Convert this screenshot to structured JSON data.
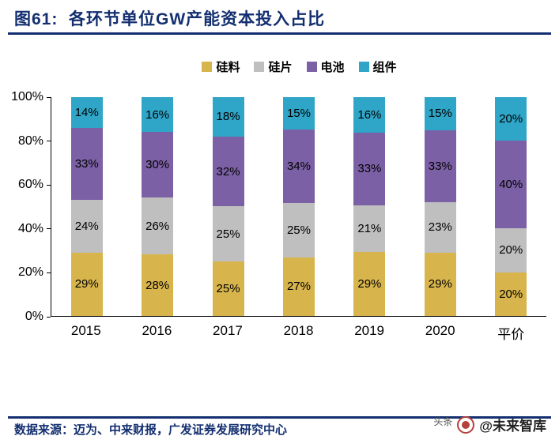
{
  "header": {
    "title": "图61:  各环节单位GW产能资本投入占比"
  },
  "colors": {
    "accent_navy": "#132F70",
    "axis": "#000000",
    "value_label": "#000000"
  },
  "chart_data": {
    "type": "bar",
    "variant": "100-percent-stacked-column",
    "title": "各环节单位GW产能资本投入占比",
    "categories": [
      "2015",
      "2016",
      "2017",
      "2018",
      "2019",
      "2020",
      "平价"
    ],
    "series": [
      {
        "name": "硅料",
        "color": "#D8B54C",
        "values": [
          29,
          28,
          25,
          27,
          29,
          29,
          20
        ]
      },
      {
        "name": "硅片",
        "color": "#BFBFBF",
        "values": [
          24,
          26,
          25,
          25,
          21,
          23,
          20
        ]
      },
      {
        "name": "电池",
        "color": "#7C60A5",
        "values": [
          33,
          30,
          32,
          34,
          33,
          33,
          40
        ]
      },
      {
        "name": "组件",
        "color": "#2FA5C7",
        "values": [
          14,
          16,
          18,
          15,
          16,
          15,
          20
        ]
      }
    ],
    "xlabel": "",
    "ylabel": "",
    "ylim": [
      0,
      100
    ],
    "yticks": [
      "100%",
      "80%",
      "60%",
      "40%",
      "20%",
      "0%"
    ],
    "grid": false,
    "legend_position": "top",
    "value_label_format": "{value}%"
  },
  "footer": {
    "source": "数据来源：迈为、中来财报，广发证券发展研究中心",
    "watermark_prefix": "头条",
    "watermark_handle": "@未来智库"
  }
}
